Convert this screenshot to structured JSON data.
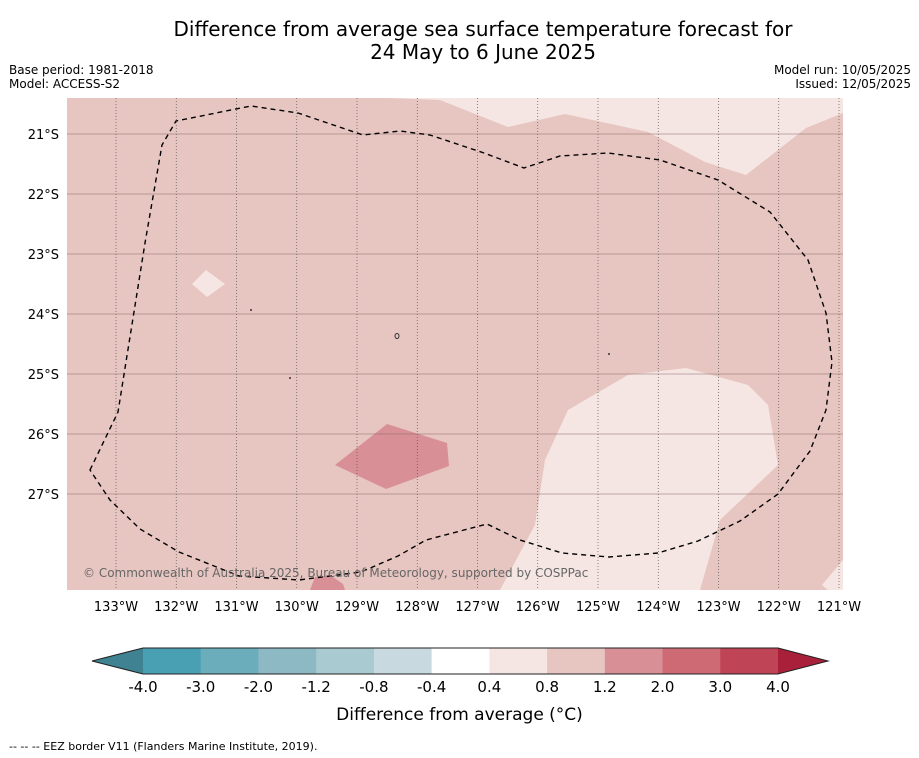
{
  "title_line1": "Difference from average sea surface temperature forecast for",
  "title_line2": "24 May to 6 June 2025",
  "base_period": "Base period: 1981-2018",
  "model": "Model: ACCESS-S2",
  "model_run": "Model run: 10/05/2025",
  "issued": "Issued: 12/05/2025",
  "copyright": "© Commonwealth of Australia 2025, Bureau of Meteorology, supported by COSPPac",
  "lon_ticks": [
    "133°W",
    "132°W",
    "131°W",
    "130°W",
    "129°W",
    "128°W",
    "127°W",
    "126°W",
    "125°W",
    "124°W",
    "123°W",
    "122°W",
    "121°W"
  ],
  "lat_ticks": [
    "21°S",
    "22°S",
    "23°S",
    "24°S",
    "25°S",
    "26°S",
    "27°S"
  ],
  "colorbar": {
    "label": "Difference from average (°C)",
    "ticks": [
      "-4.0",
      "-3.0",
      "-2.0",
      "-1.2",
      "-0.8",
      "-0.4",
      "0.4",
      "0.8",
      "1.2",
      "2.0",
      "3.0",
      "4.0"
    ],
    "colors": [
      "#4aa0b3",
      "#6cadbc",
      "#8db9c5",
      "#a9cad0",
      "#c8dadf",
      "#ffffff",
      "#f5e6e4",
      "#e7c6c1",
      "#d88f96",
      "#cd6a74",
      "#be4456"
    ],
    "under_color": "#3f8393",
    "over_color": "#a82039"
  },
  "legend_note": "--  --  -- EEZ border V11 (Flanders Marine Institute, 2019)."
}
